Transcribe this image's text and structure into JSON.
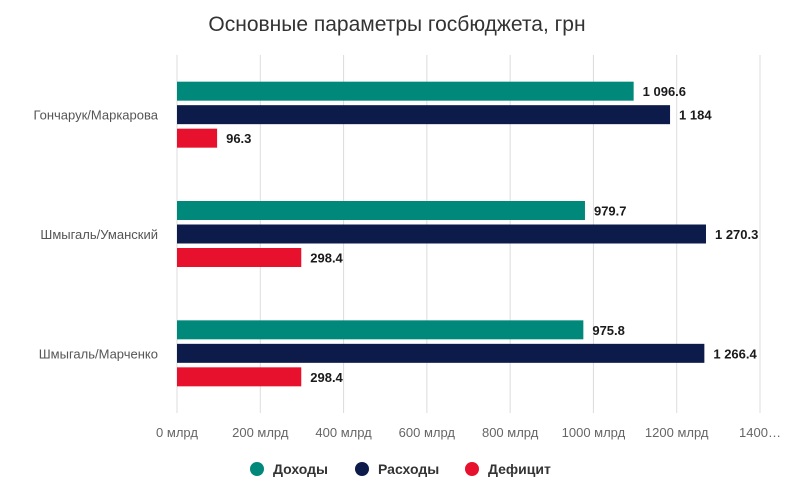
{
  "chart_data": {
    "type": "bar",
    "orientation": "horizontal",
    "title": "Основные параметры госбюджета, грн",
    "categories": [
      "Гончарук/Маркарова",
      "Шмыгаль/Уманский",
      "Шмыгаль/Марченко"
    ],
    "series": [
      {
        "name": "Доходы",
        "color": "#00897b",
        "values": [
          1096.6,
          979.7,
          975.8
        ],
        "labels": [
          "1 096.6",
          "979.7",
          "975.8"
        ]
      },
      {
        "name": "Расходы",
        "color": "#0d1b4b",
        "values": [
          1184,
          1270.3,
          1266.4
        ],
        "labels": [
          "1 184",
          "1 270.3",
          "1 266.4"
        ]
      },
      {
        "name": "Дефицит",
        "color": "#e8112d",
        "values": [
          96.3,
          298.4,
          298.4
        ],
        "labels": [
          "96.3",
          "298.4",
          "298.4"
        ]
      }
    ],
    "xlim": [
      0,
      1400
    ],
    "x_ticks": [
      0,
      200,
      400,
      600,
      800,
      1000,
      1200,
      1400
    ],
    "x_tick_labels": [
      "0 млрд",
      "200 млрд",
      "400 млрд",
      "600 млрд",
      "800 млрд",
      "1000 млрд",
      "1200 млрд",
      "1400…"
    ],
    "grid": true,
    "legend_position": "bottom"
  }
}
